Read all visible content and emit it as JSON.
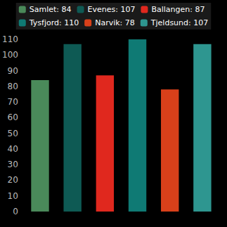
{
  "chart_data": {
    "type": "bar",
    "categories": [
      null,
      null,
      null,
      null,
      null,
      null
    ],
    "series": [
      {
        "name": "Samlet: 84",
        "color": "#4a8a5a",
        "values": [
          84,
          null,
          null,
          null,
          null,
          null
        ]
      },
      {
        "name": "Evenes: 107",
        "color": "#0e5a54",
        "values": [
          null,
          107,
          null,
          null,
          null,
          null
        ]
      },
      {
        "name": "Ballangen: 87",
        "color": "#e0281e",
        "values": [
          null,
          null,
          87,
          null,
          null,
          null
        ]
      },
      {
        "name": "Tysfjord: 110",
        "color": "#0f7a74",
        "values": [
          null,
          null,
          null,
          110,
          null,
          null
        ]
      },
      {
        "name": "Narvik: 78",
        "color": "#d8401a",
        "values": [
          null,
          null,
          null,
          null,
          78,
          null
        ]
      },
      {
        "name": "Tjeldsund: 107",
        "color": "#2e9690",
        "values": [
          null,
          null,
          null,
          null,
          null,
          107
        ]
      }
    ],
    "ylim": [
      0,
      110
    ],
    "yticks": [
      0,
      10,
      20,
      30,
      40,
      50,
      60,
      70,
      80,
      90,
      100,
      110
    ],
    "grid": false,
    "tick_labels": "y",
    "legend": "top"
  }
}
